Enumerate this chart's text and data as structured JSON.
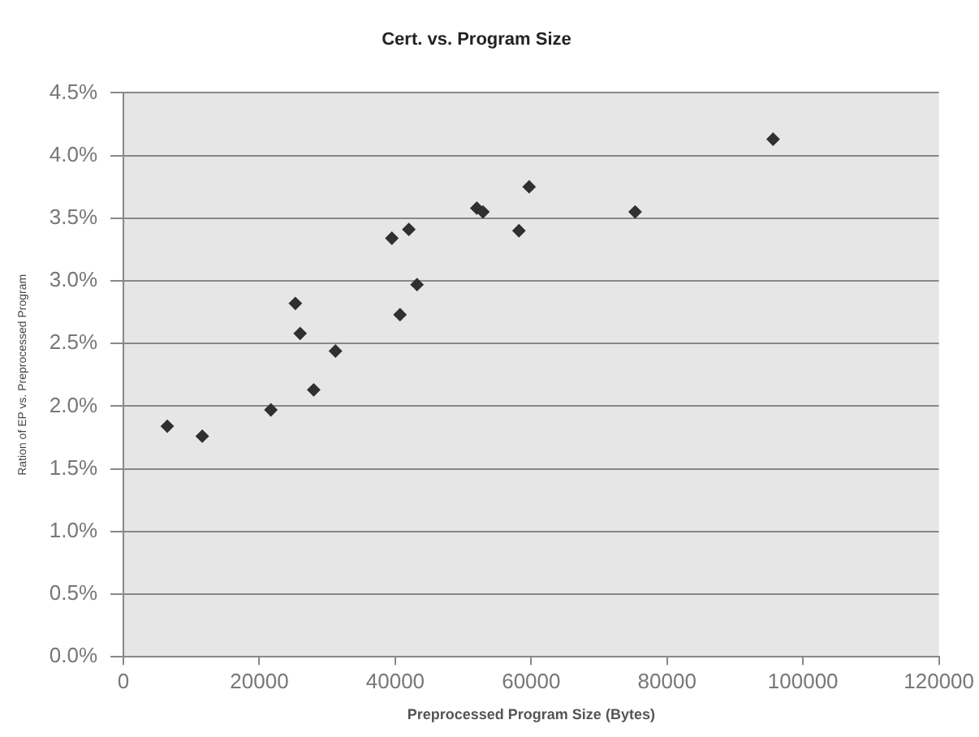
{
  "chart_data": {
    "type": "scatter",
    "title": "Cert. vs. Program Size",
    "xlabel": "Preprocessed Program Size (Bytes)",
    "ylabel": "Ration of EP vs. Preprocessed Program",
    "x": [
      6450,
      11600,
      21700,
      28000,
      31200,
      26000,
      25300,
      40700,
      43200,
      39500,
      42000,
      52000,
      52900,
      58200,
      59700,
      75300,
      95600
    ],
    "values": [
      1.84,
      1.76,
      1.97,
      2.13,
      2.44,
      2.58,
      2.82,
      2.73,
      2.97,
      3.34,
      3.41,
      3.58,
      3.55,
      3.4,
      3.75,
      3.55,
      4.13
    ],
    "color": "#303030",
    "marker": "diamond",
    "xlim": [
      0,
      120000
    ],
    "xticks": [
      0,
      20000,
      40000,
      60000,
      80000,
      100000,
      120000
    ],
    "ylim": [
      0,
      4.5
    ],
    "yticks": [
      {
        "value": 0,
        "label": "0.0%"
      },
      {
        "value": 0.5,
        "label": "0.5%"
      },
      {
        "value": 1,
        "label": "1.0%"
      },
      {
        "value": 1.5,
        "label": "1.5%"
      },
      {
        "value": 2,
        "label": "2.0%"
      },
      {
        "value": 2.5,
        "label": "2.5%"
      },
      {
        "value": 3,
        "label": "3.0%"
      },
      {
        "value": 3.5,
        "label": "3.5%"
      },
      {
        "value": 4,
        "label": "4.0%"
      },
      {
        "value": 4.5,
        "label": "4.5%"
      }
    ],
    "grid": "y"
  }
}
